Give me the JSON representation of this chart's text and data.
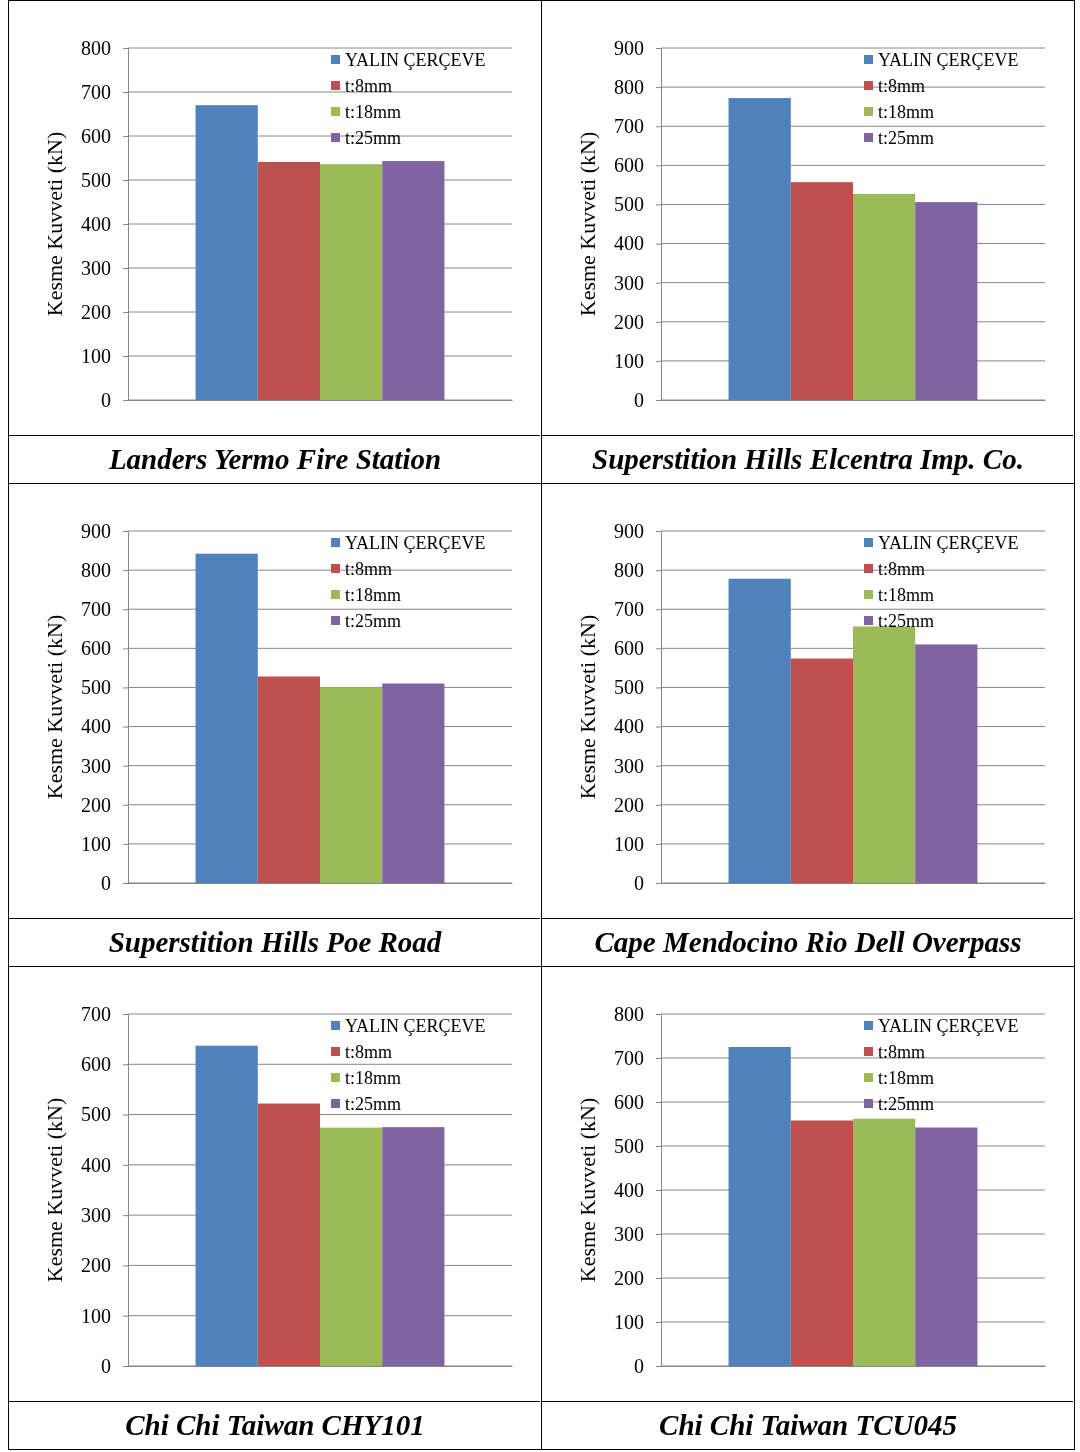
{
  "chart_data": [
    {
      "type": "bar",
      "title": "Landers Yermo Fire Station",
      "ylabel": "Kesme Kuvveti (kN)",
      "categories": [
        null
      ],
      "ylim": [
        0,
        800
      ],
      "yticks": [
        0,
        100,
        200,
        300,
        400,
        500,
        600,
        700,
        800
      ],
      "grid": "y",
      "legend": "top right",
      "series": [
        {
          "name": "YALIN ÇERÇEVE",
          "color": "#4f81bd",
          "values": [
            670
          ]
        },
        {
          "name": "t:8mm",
          "color": "#c0504d",
          "values": [
            541
          ]
        },
        {
          "name": "t:18mm",
          "color": "#9bbb59",
          "values": [
            536
          ]
        },
        {
          "name": "t:25mm",
          "color": "#8064a2",
          "values": [
            543
          ]
        }
      ]
    },
    {
      "type": "bar",
      "title": "Superstition Hills Elcentra Imp. Co.",
      "ylabel": "Kesme Kuvveti (kN)",
      "categories": [
        null
      ],
      "ylim": [
        0,
        900
      ],
      "yticks": [
        0,
        100,
        200,
        300,
        400,
        500,
        600,
        700,
        800,
        900
      ],
      "grid": "y",
      "legend": "top right",
      "series": [
        {
          "name": "YALIN ÇERÇEVE",
          "color": "#4f81bd",
          "values": [
            772
          ]
        },
        {
          "name": "t:8mm",
          "color": "#c0504d",
          "values": [
            557
          ]
        },
        {
          "name": "t:18mm",
          "color": "#9bbb59",
          "values": [
            527
          ]
        },
        {
          "name": "t:25mm",
          "color": "#8064a2",
          "values": [
            506
          ]
        }
      ]
    },
    {
      "type": "bar",
      "title": "Superstition Hills Poe Road",
      "ylabel": "Kesme Kuvveti (kN)",
      "categories": [
        null
      ],
      "ylim": [
        0,
        900
      ],
      "yticks": [
        0,
        100,
        200,
        300,
        400,
        500,
        600,
        700,
        800,
        900
      ],
      "grid": "y",
      "legend": "top right",
      "series": [
        {
          "name": "YALIN ÇERÇEVE",
          "color": "#4f81bd",
          "values": [
            842
          ]
        },
        {
          "name": "t:8mm",
          "color": "#c0504d",
          "values": [
            528
          ]
        },
        {
          "name": "t:18mm",
          "color": "#9bbb59",
          "values": [
            500
          ]
        },
        {
          "name": "t:25mm",
          "color": "#8064a2",
          "values": [
            510
          ]
        }
      ]
    },
    {
      "type": "bar",
      "title": "Cape Mendocino Rio Dell Overpass",
      "ylabel": "Kesme Kuvveti (kN)",
      "categories": [
        null
      ],
      "ylim": [
        0,
        900
      ],
      "yticks": [
        0,
        100,
        200,
        300,
        400,
        500,
        600,
        700,
        800,
        900
      ],
      "grid": "y",
      "legend": "top right",
      "series": [
        {
          "name": "YALIN ÇERÇEVE",
          "color": "#4f81bd",
          "values": [
            778
          ]
        },
        {
          "name": "t:8mm",
          "color": "#c0504d",
          "values": [
            574
          ]
        },
        {
          "name": "t:18mm",
          "color": "#9bbb59",
          "values": [
            656
          ]
        },
        {
          "name": "t:25mm",
          "color": "#8064a2",
          "values": [
            610
          ]
        }
      ]
    },
    {
      "type": "bar",
      "title": "Chi Chi Taiwan CHY101",
      "ylabel": "Kesme Kuvveti (kN)",
      "categories": [
        null
      ],
      "ylim": [
        0,
        700
      ],
      "yticks": [
        0,
        100,
        200,
        300,
        400,
        500,
        600,
        700
      ],
      "grid": "y",
      "legend": "top right",
      "series": [
        {
          "name": "YALIN ÇERÇEVE",
          "color": "#4f81bd",
          "values": [
            637
          ]
        },
        {
          "name": "t:8mm",
          "color": "#c0504d",
          "values": [
            522
          ]
        },
        {
          "name": "t:18mm",
          "color": "#9bbb59",
          "values": [
            474
          ]
        },
        {
          "name": "t:25mm",
          "color": "#8064a2",
          "values": [
            475
          ]
        }
      ]
    },
    {
      "type": "bar",
      "title": "Chi Chi Taiwan TCU045",
      "ylabel": "Kesme Kuvveti (kN)",
      "categories": [
        null
      ],
      "ylim": [
        0,
        800
      ],
      "yticks": [
        0,
        100,
        200,
        300,
        400,
        500,
        600,
        700,
        800
      ],
      "grid": "y",
      "legend": "top right",
      "series": [
        {
          "name": "YALIN ÇERÇEVE",
          "color": "#4f81bd",
          "values": [
            725
          ]
        },
        {
          "name": "t:8mm",
          "color": "#c0504d",
          "values": [
            558
          ]
        },
        {
          "name": "t:18mm",
          "color": "#9bbb59",
          "values": [
            562
          ]
        },
        {
          "name": "t:25mm",
          "color": "#8064a2",
          "values": [
            542
          ]
        }
      ]
    }
  ]
}
